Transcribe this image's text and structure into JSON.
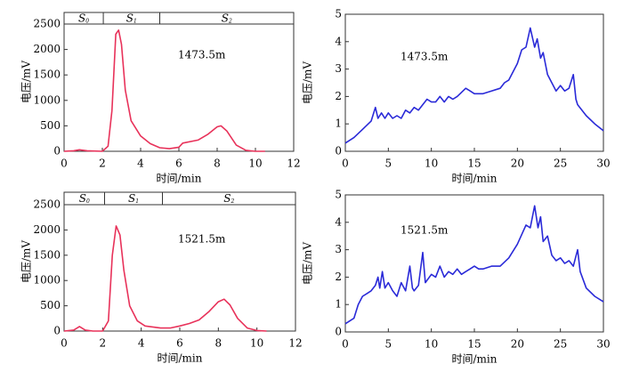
{
  "chart_data": [
    {
      "type": "line",
      "annotation": "1473.5m",
      "xlabel": "时间/min",
      "ylabel": "电压/mV",
      "color": "#e8325a",
      "x": [
        0,
        0.5,
        0.8,
        1.2,
        2.0,
        2.3,
        2.5,
        2.7,
        2.85,
        3.0,
        3.2,
        3.5,
        4,
        4.5,
        5,
        5.5,
        6,
        6.2,
        7,
        7.5,
        8,
        8.2,
        8.5,
        9,
        9.5,
        10,
        10.5
      ],
      "values": [
        0,
        10,
        30,
        10,
        0,
        100,
        800,
        2300,
        2380,
        2100,
        1200,
        600,
        300,
        150,
        70,
        50,
        80,
        160,
        220,
        330,
        480,
        500,
        400,
        120,
        20,
        0,
        0
      ],
      "xlim": [
        0,
        12
      ],
      "ylim": [
        0,
        2500
      ],
      "xticks": [
        0,
        2,
        4,
        6,
        8,
        10,
        12
      ],
      "yticks": [
        0,
        500,
        1000,
        1500,
        2000,
        2500
      ],
      "zones": [
        {
          "label": "S",
          "sub": "0",
          "x0": 0,
          "x1": 2.05
        },
        {
          "label": "S",
          "sub": "1",
          "x0": 2.05,
          "x1": 5
        },
        {
          "label": "S",
          "sub": "2",
          "x0": 5,
          "x1": 12
        }
      ]
    },
    {
      "type": "line",
      "annotation": "1473.5m",
      "xlabel": "时间/min",
      "ylabel": "电压/mV",
      "color": "#2a2ad8",
      "x": [
        0,
        1,
        2,
        3,
        3.5,
        3.8,
        4.2,
        4.6,
        5,
        5.5,
        6,
        6.5,
        7,
        7.5,
        8,
        8.5,
        9,
        9.5,
        10,
        10.5,
        11,
        11.5,
        12,
        12.5,
        13,
        14,
        14.5,
        15,
        16,
        17,
        18,
        18.5,
        19,
        20,
        20.5,
        21,
        21.5,
        22,
        22.3,
        22.7,
        23,
        23.5,
        24,
        24.5,
        25,
        25.5,
        26,
        26.5,
        26.8,
        27,
        28,
        29,
        30
      ],
      "values": [
        0.3,
        0.5,
        0.8,
        1.1,
        1.6,
        1.2,
        1.4,
        1.2,
        1.4,
        1.2,
        1.3,
        1.2,
        1.5,
        1.4,
        1.6,
        1.5,
        1.7,
        1.9,
        1.8,
        1.8,
        2.0,
        1.8,
        2.0,
        1.9,
        2.0,
        2.3,
        2.2,
        2.1,
        2.1,
        2.2,
        2.3,
        2.5,
        2.6,
        3.2,
        3.7,
        3.8,
        4.5,
        3.8,
        4.1,
        3.4,
        3.6,
        2.8,
        2.5,
        2.2,
        2.4,
        2.2,
        2.3,
        2.8,
        1.9,
        1.7,
        1.3,
        1.0,
        0.75
      ],
      "xlim": [
        0,
        30
      ],
      "ylim": [
        0,
        5
      ],
      "xticks": [
        0,
        5,
        10,
        15,
        20,
        25,
        30
      ],
      "yticks": [
        0,
        1,
        2,
        3,
        4,
        5
      ]
    },
    {
      "type": "line",
      "annotation": "1521.5m",
      "xlabel": "时间/min",
      "ylabel": "电压/mV",
      "color": "#e8325a",
      "x": [
        0,
        0.5,
        0.8,
        1.1,
        1.5,
        2,
        2.3,
        2.5,
        2.7,
        2.9,
        3.1,
        3.4,
        3.8,
        4.2,
        5,
        5.5,
        6,
        6.5,
        7,
        7.5,
        8,
        8.3,
        8.6,
        9,
        9.5,
        10,
        10.5
      ],
      "values": [
        0,
        20,
        90,
        20,
        0,
        0,
        200,
        1500,
        2080,
        1900,
        1200,
        500,
        200,
        100,
        60,
        60,
        100,
        150,
        220,
        380,
        580,
        630,
        520,
        250,
        60,
        10,
        0
      ],
      "xlim": [
        0,
        12
      ],
      "ylim": [
        0,
        2500
      ],
      "xticks": [
        0,
        2,
        4,
        6,
        8,
        10,
        12
      ],
      "yticks": [
        0,
        500,
        1000,
        1500,
        2000,
        2500
      ],
      "zones": [
        {
          "label": "S",
          "sub": "0",
          "x0": 0,
          "x1": 2.1
        },
        {
          "label": "S",
          "sub": "1",
          "x0": 2.1,
          "x1": 5.1
        },
        {
          "label": "S",
          "sub": "2",
          "x0": 5.1,
          "x1": 12
        }
      ]
    },
    {
      "type": "line",
      "annotation": "1521.5m",
      "xlabel": "时间/min",
      "ylabel": "电压/mV",
      "color": "#2a2ad8",
      "x": [
        0,
        1,
        1.5,
        2,
        2.5,
        3,
        3.5,
        3.8,
        4,
        4.3,
        4.6,
        5,
        5.5,
        6,
        6.5,
        7,
        7.5,
        7.8,
        8,
        8.5,
        9,
        9.3,
        10,
        10.5,
        11,
        11.5,
        12,
        12.5,
        13,
        13.5,
        14,
        14.5,
        15,
        15.5,
        16,
        17,
        18,
        19,
        20,
        21,
        21.5,
        22,
        22.4,
        22.7,
        23,
        23.5,
        24,
        24.5,
        25,
        25.5,
        26,
        26.5,
        27,
        27.3,
        28,
        29,
        30
      ],
      "values": [
        0.3,
        0.5,
        1.0,
        1.3,
        1.4,
        1.5,
        1.7,
        2.0,
        1.6,
        2.2,
        1.6,
        1.8,
        1.5,
        1.3,
        1.8,
        1.5,
        2.4,
        1.6,
        1.5,
        1.7,
        2.9,
        1.8,
        2.1,
        2.0,
        2.4,
        2.0,
        2.2,
        2.1,
        2.3,
        2.1,
        2.2,
        2.3,
        2.4,
        2.3,
        2.3,
        2.4,
        2.4,
        2.7,
        3.2,
        3.9,
        3.8,
        4.6,
        3.8,
        4.2,
        3.3,
        3.5,
        2.8,
        2.6,
        2.7,
        2.5,
        2.6,
        2.4,
        3.0,
        2.2,
        1.6,
        1.3,
        1.1
      ],
      "xlim": [
        0,
        30
      ],
      "ylim": [
        0,
        5
      ],
      "xticks": [
        0,
        5,
        10,
        15,
        20,
        25,
        30
      ],
      "yticks": [
        0,
        1,
        2,
        3,
        4,
        5
      ]
    }
  ]
}
